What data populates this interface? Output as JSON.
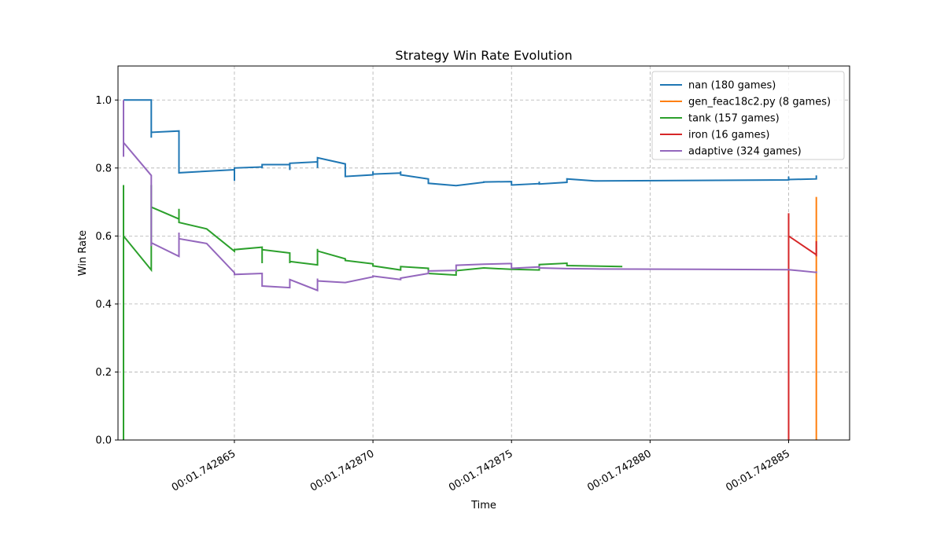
{
  "chart_data": {
    "type": "line",
    "title": "Strategy Win Rate Evolution",
    "xlabel": "Time",
    "ylabel": "Win Rate",
    "xlim": [
      1.7428608,
      1.7428872
    ],
    "ylim": [
      0.0,
      1.1
    ],
    "x_ticks": [
      1.742865,
      1.74287,
      1.742875,
      1.74288,
      1.742885
    ],
    "x_tick_labels": [
      "00:01.742865",
      "00:01.742870",
      "00:01.742875",
      "00:01.742880",
      "00:01.742885"
    ],
    "y_ticks": [
      0.0,
      0.2,
      0.4,
      0.6,
      0.8,
      1.0
    ],
    "y_tick_labels": [
      "0.0",
      "0.2",
      "0.4",
      "0.6",
      "0.8",
      "1.0"
    ],
    "grid": true,
    "legend_position": "top-right",
    "series": [
      {
        "name": "nan (180 games)",
        "color": "#1f77b4",
        "x": [
          1.742861,
          1.742861,
          1.742862,
          1.742862,
          1.742862,
          1.742863,
          1.742863,
          1.742865,
          1.742865,
          1.742865,
          1.742866,
          1.742866,
          1.742866,
          1.742867,
          1.742867,
          1.742867,
          1.742868,
          1.742868,
          1.742868,
          1.742869,
          1.742869,
          1.74287,
          1.74287,
          1.74287,
          1.742871,
          1.742871,
          1.742871,
          1.742872,
          1.742872,
          1.742873,
          1.742874,
          1.742874,
          1.742875,
          1.742875,
          1.742876,
          1.742876,
          1.742876,
          1.742877,
          1.742877,
          1.742878,
          1.742885,
          1.742885,
          1.742885,
          1.742886,
          1.742886
        ],
        "y": [
          1.0,
          1.0,
          1.0,
          0.889,
          0.905,
          0.909,
          0.786,
          0.795,
          0.762,
          0.8,
          0.803,
          0.799,
          0.81,
          0.81,
          0.794,
          0.814,
          0.818,
          0.8,
          0.83,
          0.812,
          0.775,
          0.78,
          0.79,
          0.782,
          0.785,
          0.79,
          0.78,
          0.768,
          0.755,
          0.748,
          0.758,
          0.759,
          0.76,
          0.75,
          0.754,
          0.76,
          0.753,
          0.758,
          0.768,
          0.762,
          0.765,
          0.775,
          0.766,
          0.768,
          0.778
        ]
      },
      {
        "name": "gen_feac18c2.py (8 games)",
        "color": "#ff7f0e",
        "x": [
          1.742886,
          1.742886
        ],
        "y": [
          0.0,
          0.715
        ]
      },
      {
        "name": "tank (157 games)",
        "color": "#2ca02c",
        "x": [
          1.742861,
          1.742861,
          1.742861,
          1.742862,
          1.742862,
          1.742862,
          1.742863,
          1.742863,
          1.742863,
          1.742864,
          1.742865,
          1.742865,
          1.742866,
          1.742866,
          1.742866,
          1.742867,
          1.742867,
          1.742867,
          1.742868,
          1.742868,
          1.742868,
          1.742869,
          1.742869,
          1.74287,
          1.74287,
          1.742871,
          1.742871,
          1.742872,
          1.742872,
          1.742873,
          1.742873,
          1.742874,
          1.742875,
          1.742876,
          1.742876,
          1.742877,
          1.742877,
          1.742879
        ],
        "y": [
          0.0,
          0.75,
          0.6,
          0.5,
          0.75,
          0.685,
          0.65,
          0.68,
          0.64,
          0.621,
          0.555,
          0.56,
          0.567,
          0.52,
          0.56,
          0.55,
          0.52,
          0.525,
          0.515,
          0.562,
          0.556,
          0.533,
          0.528,
          0.518,
          0.512,
          0.5,
          0.51,
          0.505,
          0.49,
          0.485,
          0.498,
          0.506,
          0.502,
          0.5,
          0.516,
          0.52,
          0.513,
          0.51
        ]
      },
      {
        "name": "iron (16 games)",
        "color": "#d62728",
        "x": [
          1.742885,
          1.742885,
          1.742885,
          1.742886,
          1.742886,
          1.742886
        ],
        "y": [
          0.0,
          0.667,
          0.6,
          0.545,
          0.585,
          0.54
        ]
      },
      {
        "name": "adaptive (324 games)",
        "color": "#9467bd",
        "x": [
          1.742861,
          1.742861,
          1.742861,
          1.742862,
          1.742862,
          1.742862,
          1.742863,
          1.742863,
          1.742863,
          1.742864,
          1.742865,
          1.742865,
          1.742866,
          1.742866,
          1.742867,
          1.742867,
          1.742868,
          1.742868,
          1.742868,
          1.742869,
          1.74287,
          1.74287,
          1.742871,
          1.742871,
          1.742872,
          1.742872,
          1.742873,
          1.742873,
          1.742874,
          1.742875,
          1.742875,
          1.742876,
          1.742876,
          1.742877,
          1.742878,
          1.742885,
          1.742886,
          1.742886
        ],
        "y": [
          0.833,
          1.0,
          0.875,
          0.778,
          0.57,
          0.58,
          0.54,
          0.61,
          0.592,
          0.578,
          0.492,
          0.487,
          0.49,
          0.453,
          0.448,
          0.472,
          0.44,
          0.475,
          0.468,
          0.463,
          0.48,
          0.482,
          0.472,
          0.476,
          0.49,
          0.497,
          0.499,
          0.514,
          0.517,
          0.519,
          0.505,
          0.509,
          0.506,
          0.504,
          0.503,
          0.501,
          0.493,
          0.496
        ]
      }
    ]
  }
}
